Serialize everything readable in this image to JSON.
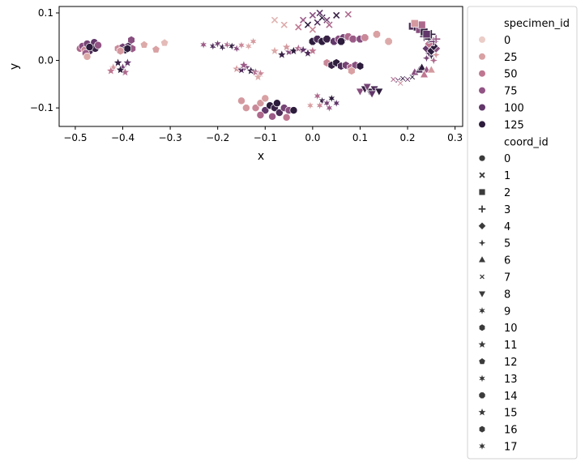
{
  "chart_data": {
    "type": "scatter",
    "xlabel": "x",
    "ylabel": "y",
    "xlim": [
      -0.534,
      0.316
    ],
    "ylim": [
      -0.139,
      0.1136
    ],
    "xticks": [
      "−0.5",
      "−0.4",
      "−0.3",
      "−0.2",
      "−0.1",
      "0.0",
      "0.1",
      "0.2",
      "0.3"
    ],
    "xtick_values": [
      -0.5,
      -0.4,
      -0.3,
      -0.2,
      -0.1,
      0.0,
      0.1,
      0.2,
      0.3
    ],
    "yticks": [
      "−0.1",
      "0.0",
      "0.1"
    ],
    "ytick_values": [
      -0.1,
      0.0,
      0.1
    ],
    "grid": false,
    "legend_placement": "outside-right",
    "hue_title": "specimen_id",
    "hue_levels": [
      "0",
      "25",
      "50",
      "75",
      "100",
      "125"
    ],
    "hue_colors": [
      "#ebcdc8",
      "#d9a1a3",
      "#bf7791",
      "#925484",
      "#62376a",
      "#2d1c3c"
    ],
    "style_title": "coord_id",
    "style_levels": [
      "0",
      "1",
      "2",
      "3",
      "4",
      "5",
      "6",
      "7",
      "8",
      "9",
      "10",
      "11",
      "12",
      "13",
      "14",
      "15",
      "16",
      "17"
    ],
    "style_markers": [
      "circle",
      "x",
      "square",
      "plus",
      "diamond",
      "thin-diamond",
      "triangle-up",
      "x-thin",
      "triangle-down",
      "asterisk",
      "hexagon",
      "star",
      "pentagon",
      "asterisk",
      "octagon",
      "star",
      "hexagon",
      "asterisk"
    ],
    "points_columns": [
      "x",
      "y",
      "specimen_id",
      "coord_id"
    ],
    "points": [
      [
        -0.49,
        0.025,
        60,
        0
      ],
      [
        -0.485,
        0.03,
        80,
        0
      ],
      [
        -0.48,
        0.022,
        40,
        0
      ],
      [
        -0.475,
        0.035,
        90,
        0
      ],
      [
        -0.47,
        0.02,
        110,
        0
      ],
      [
        -0.465,
        0.03,
        125,
        0
      ],
      [
        -0.46,
        0.038,
        100,
        0
      ],
      [
        -0.458,
        0.025,
        120,
        0
      ],
      [
        -0.47,
        0.028,
        130,
        0
      ],
      [
        -0.478,
        0.015,
        70,
        0
      ],
      [
        -0.452,
        0.032,
        75,
        0
      ],
      [
        -0.475,
        0.008,
        20,
        0
      ],
      [
        -0.41,
        0.025,
        40,
        10
      ],
      [
        -0.4,
        0.028,
        90,
        10
      ],
      [
        -0.395,
        0.022,
        125,
        10
      ],
      [
        -0.388,
        0.03,
        110,
        10
      ],
      [
        -0.38,
        0.025,
        70,
        10
      ],
      [
        -0.382,
        0.043,
        80,
        10
      ],
      [
        -0.405,
        0.02,
        30,
        10
      ],
      [
        -0.39,
        0.025,
        130,
        10
      ],
      [
        -0.42,
        -0.015,
        30,
        11
      ],
      [
        -0.41,
        -0.005,
        120,
        11
      ],
      [
        -0.4,
        -0.015,
        90,
        11
      ],
      [
        -0.395,
        -0.025,
        60,
        11
      ],
      [
        -0.405,
        -0.02,
        130,
        11
      ],
      [
        -0.39,
        -0.005,
        100,
        11
      ],
      [
        -0.425,
        -0.022,
        50,
        11
      ],
      [
        -0.355,
        0.033,
        20,
        12
      ],
      [
        -0.33,
        0.023,
        25,
        12
      ],
      [
        -0.312,
        0.037,
        10,
        12
      ],
      [
        -0.23,
        0.033,
        70,
        9
      ],
      [
        -0.21,
        0.03,
        110,
        9
      ],
      [
        -0.2,
        0.035,
        90,
        9
      ],
      [
        -0.19,
        0.028,
        120,
        9
      ],
      [
        -0.18,
        0.033,
        60,
        9
      ],
      [
        -0.17,
        0.03,
        130,
        9
      ],
      [
        -0.16,
        0.025,
        80,
        9
      ],
      [
        -0.15,
        0.032,
        40,
        9
      ],
      [
        -0.135,
        0.03,
        20,
        9
      ],
      [
        -0.125,
        0.04,
        30,
        9
      ],
      [
        -0.16,
        -0.018,
        30,
        15
      ],
      [
        -0.15,
        -0.02,
        110,
        15
      ],
      [
        -0.14,
        -0.015,
        90,
        15
      ],
      [
        -0.13,
        -0.022,
        120,
        15
      ],
      [
        -0.12,
        -0.025,
        60,
        15
      ],
      [
        -0.11,
        -0.028,
        40,
        15
      ],
      [
        -0.145,
        -0.01,
        70,
        15
      ],
      [
        -0.115,
        -0.035,
        20,
        15
      ],
      [
        -0.08,
        0.02,
        20,
        11
      ],
      [
        -0.065,
        0.012,
        120,
        11
      ],
      [
        -0.05,
        0.018,
        80,
        11
      ],
      [
        -0.04,
        0.02,
        130,
        11
      ],
      [
        -0.03,
        0.025,
        60,
        11
      ],
      [
        -0.02,
        0.022,
        100,
        11
      ],
      [
        -0.01,
        0.015,
        110,
        11
      ],
      [
        0.0,
        0.02,
        50,
        11
      ],
      [
        -0.055,
        0.028,
        30,
        11
      ],
      [
        -0.08,
        0.085,
        15,
        1
      ],
      [
        -0.06,
        0.075,
        20,
        1
      ],
      [
        -0.03,
        0.07,
        50,
        1
      ],
      [
        -0.02,
        0.085,
        70,
        1
      ],
      [
        -0.01,
        0.075,
        125,
        1
      ],
      [
        0.0,
        0.095,
        80,
        1
      ],
      [
        0.01,
        0.08,
        110,
        1
      ],
      [
        0.02,
        0.09,
        130,
        1
      ],
      [
        0.03,
        0.085,
        90,
        1
      ],
      [
        0.035,
        0.075,
        60,
        1
      ],
      [
        0.05,
        0.095,
        120,
        1
      ],
      [
        0.075,
        0.097,
        60,
        1
      ],
      [
        0.0,
        0.065,
        40,
        1
      ],
      [
        0.015,
        0.1,
        100,
        1
      ],
      [
        0.0,
        0.04,
        125,
        14
      ],
      [
        0.01,
        0.045,
        110,
        14
      ],
      [
        0.02,
        0.04,
        130,
        14
      ],
      [
        0.03,
        0.045,
        120,
        14
      ],
      [
        0.045,
        0.04,
        100,
        14
      ],
      [
        0.055,
        0.045,
        80,
        14
      ],
      [
        0.065,
        0.048,
        90,
        14
      ],
      [
        0.075,
        0.05,
        60,
        14
      ],
      [
        0.085,
        0.045,
        70,
        14
      ],
      [
        0.1,
        0.045,
        80,
        14
      ],
      [
        0.11,
        0.048,
        40,
        14
      ],
      [
        0.135,
        0.055,
        25,
        14
      ],
      [
        0.16,
        0.04,
        20,
        14
      ],
      [
        0.06,
        0.04,
        125,
        14
      ],
      [
        0.03,
        -0.005,
        40,
        16
      ],
      [
        0.04,
        -0.01,
        120,
        16
      ],
      [
        0.05,
        -0.005,
        130,
        16
      ],
      [
        0.06,
        -0.012,
        110,
        16
      ],
      [
        0.07,
        -0.01,
        90,
        16
      ],
      [
        0.08,
        -0.015,
        60,
        16
      ],
      [
        0.09,
        -0.01,
        80,
        16
      ],
      [
        0.1,
        -0.012,
        125,
        16
      ],
      [
        0.082,
        -0.022,
        25,
        16
      ],
      [
        -0.12,
        -0.1,
        40,
        0
      ],
      [
        -0.11,
        -0.09,
        30,
        0
      ],
      [
        -0.1,
        -0.105,
        100,
        0
      ],
      [
        -0.09,
        -0.095,
        125,
        0
      ],
      [
        -0.08,
        -0.1,
        120,
        0
      ],
      [
        -0.07,
        -0.11,
        110,
        0
      ],
      [
        -0.06,
        -0.1,
        90,
        0
      ],
      [
        -0.05,
        -0.105,
        80,
        0
      ],
      [
        -0.04,
        -0.105,
        125,
        0
      ],
      [
        -0.075,
        -0.09,
        130,
        0
      ],
      [
        -0.11,
        -0.115,
        60,
        0
      ],
      [
        -0.055,
        -0.12,
        50,
        0
      ],
      [
        -0.085,
        -0.118,
        70,
        0
      ],
      [
        -0.15,
        -0.085,
        30,
        0
      ],
      [
        -0.14,
        -0.1,
        30,
        0
      ],
      [
        -0.1,
        -0.08,
        25,
        0
      ],
      [
        0.01,
        -0.075,
        60,
        13
      ],
      [
        0.02,
        -0.085,
        120,
        13
      ],
      [
        0.03,
        -0.09,
        90,
        13
      ],
      [
        0.04,
        -0.08,
        130,
        13
      ],
      [
        0.05,
        -0.09,
        100,
        13
      ],
      [
        0.035,
        -0.1,
        70,
        13
      ],
      [
        0.015,
        -0.095,
        40,
        13
      ],
      [
        -0.005,
        -0.095,
        25,
        13
      ],
      [
        0.1,
        -0.065,
        80,
        8
      ],
      [
        0.11,
        -0.06,
        120,
        8
      ],
      [
        0.12,
        -0.065,
        130,
        8
      ],
      [
        0.13,
        -0.06,
        110,
        8
      ],
      [
        0.14,
        -0.065,
        125,
        8
      ],
      [
        0.115,
        -0.055,
        90,
        8
      ],
      [
        0.125,
        -0.07,
        100,
        8
      ],
      [
        0.17,
        -0.04,
        60,
        7
      ],
      [
        0.18,
        -0.042,
        100,
        7
      ],
      [
        0.19,
        -0.038,
        120,
        7
      ],
      [
        0.2,
        -0.04,
        90,
        7
      ],
      [
        0.21,
        -0.035,
        130,
        7
      ],
      [
        0.185,
        -0.048,
        40,
        7
      ],
      [
        0.215,
        -0.025,
        80,
        6
      ],
      [
        0.225,
        -0.02,
        110,
        6
      ],
      [
        0.23,
        -0.015,
        125,
        6
      ],
      [
        0.24,
        -0.02,
        70,
        6
      ],
      [
        0.25,
        -0.02,
        30,
        6
      ],
      [
        0.235,
        -0.03,
        50,
        6
      ],
      [
        0.24,
        0.005,
        90,
        5
      ],
      [
        0.25,
        0.01,
        120,
        5
      ],
      [
        0.255,
        0.0,
        60,
        5
      ],
      [
        0.245,
        0.015,
        110,
        5
      ],
      [
        0.26,
        0.012,
        30,
        5
      ],
      [
        0.24,
        0.025,
        100,
        4
      ],
      [
        0.25,
        0.02,
        125,
        4
      ],
      [
        0.26,
        0.025,
        80,
        4
      ],
      [
        0.255,
        0.03,
        130,
        4
      ],
      [
        0.245,
        0.035,
        50,
        4
      ],
      [
        0.235,
        0.05,
        110,
        3
      ],
      [
        0.245,
        0.045,
        125,
        3
      ],
      [
        0.255,
        0.04,
        90,
        3
      ],
      [
        0.26,
        0.045,
        70,
        3
      ],
      [
        0.25,
        0.055,
        130,
        3
      ],
      [
        0.21,
        0.072,
        110,
        2
      ],
      [
        0.22,
        0.07,
        125,
        2
      ],
      [
        0.225,
        0.065,
        80,
        2
      ],
      [
        0.235,
        0.06,
        130,
        2
      ],
      [
        0.23,
        0.075,
        60,
        2
      ],
      [
        0.24,
        0.055,
        100,
        2
      ],
      [
        0.215,
        0.078,
        30,
        2
      ]
    ]
  }
}
